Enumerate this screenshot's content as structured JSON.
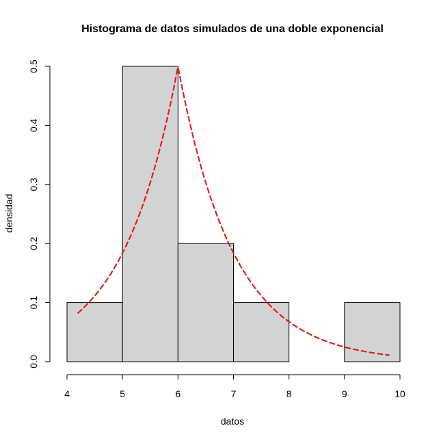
{
  "chart_data": {
    "type": "bar",
    "title": "Histograma de datos simulados de una doble exponencial",
    "xlabel": "datos",
    "ylabel": "densidad",
    "xlim": [
      4,
      10
    ],
    "ylim": [
      0,
      0.5
    ],
    "x_ticks": [
      "4",
      "5",
      "6",
      "7",
      "8",
      "9",
      "10"
    ],
    "y_ticks": [
      "0.0",
      "0.1",
      "0.2",
      "0.3",
      "0.4",
      "0.5"
    ],
    "bins": [
      {
        "start": 4,
        "end": 5,
        "density": 0.1
      },
      {
        "start": 5,
        "end": 6,
        "density": 0.5
      },
      {
        "start": 6,
        "end": 7,
        "density": 0.2
      },
      {
        "start": 7,
        "end": 8,
        "density": 0.1
      },
      {
        "start": 8,
        "end": 9,
        "density": 0.0
      },
      {
        "start": 9,
        "end": 10,
        "density": 0.1
      }
    ],
    "curve": {
      "type": "double-exponential",
      "location": 6,
      "rate": 1,
      "x_range": [
        4.2,
        9.8
      ],
      "color": "#e31a1c",
      "line_style": "dashed"
    },
    "bar_color": "#d3d3d3",
    "grid": false,
    "legend": "none"
  }
}
